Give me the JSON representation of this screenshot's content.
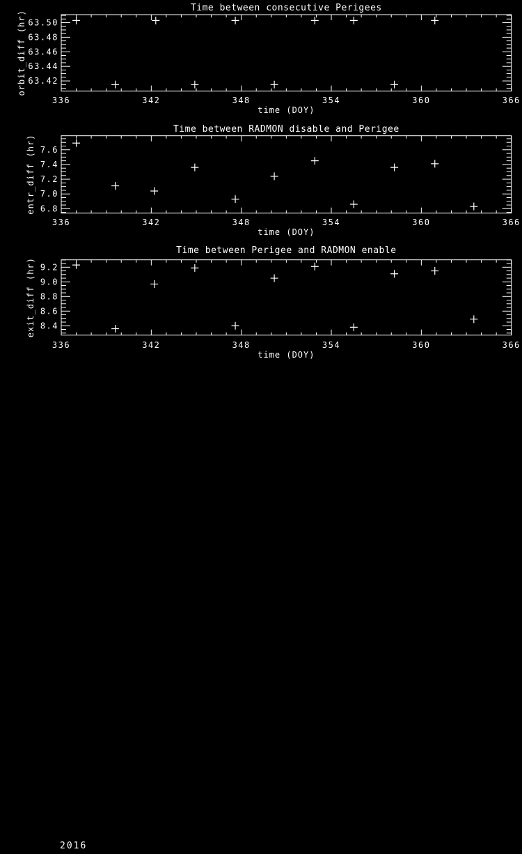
{
  "page": {
    "background": "#000000",
    "foreground": "#ffffff",
    "footer_year": "2016"
  },
  "chart_data": [
    {
      "type": "scatter",
      "title": "Time between consecutive Perigees",
      "xlabel": "time (DOY)",
      "ylabel": "orbit_diff (hr)",
      "marker": "plus",
      "grid": false,
      "legend": "none",
      "xlim": [
        336,
        366
      ],
      "ylim": [
        63.406,
        63.511
      ],
      "xticks": [
        336,
        342,
        348,
        354,
        360,
        366
      ],
      "xtick_labels": [
        "336",
        "342",
        "348",
        "354",
        "360",
        "366"
      ],
      "yticks": [
        63.42,
        63.44,
        63.46,
        63.48,
        63.5
      ],
      "ytick_labels": [
        "63.42",
        "63.44",
        "63.46",
        "63.48",
        "63.50"
      ],
      "x_minor_step": 1,
      "y_minor_step": 0.005,
      "x": [
        337.0,
        339.6,
        342.3,
        344.9,
        347.6,
        350.2,
        352.9,
        355.5,
        358.2,
        360.9
      ],
      "y": [
        63.503,
        63.415,
        63.503,
        63.415,
        63.503,
        63.415,
        63.503,
        63.503,
        63.415,
        63.503
      ]
    },
    {
      "type": "scatter",
      "title": "Time between RADMON disable and Perigee",
      "xlabel": "time (DOY)",
      "ylabel": "entr_diff (hr)",
      "marker": "plus",
      "grid": false,
      "legend": "none",
      "xlim": [
        336,
        366
      ],
      "ylim": [
        6.74,
        7.79
      ],
      "xticks": [
        336,
        342,
        348,
        354,
        360,
        366
      ],
      "xtick_labels": [
        "336",
        "342",
        "348",
        "354",
        "360",
        "366"
      ],
      "yticks": [
        6.8,
        7.0,
        7.2,
        7.4,
        7.6
      ],
      "ytick_labels": [
        "6.8",
        "7.0",
        "7.2",
        "7.4",
        "7.6"
      ],
      "x_minor_step": 1,
      "y_minor_step": 0.05,
      "x": [
        337.0,
        339.6,
        342.2,
        344.9,
        347.6,
        350.2,
        352.9,
        355.5,
        358.2,
        360.9,
        363.5
      ],
      "y": [
        7.69,
        7.11,
        7.04,
        7.36,
        6.93,
        7.24,
        7.45,
        6.86,
        7.36,
        7.41,
        6.83
      ]
    },
    {
      "type": "scatter",
      "title": "Time between Perigee and RADMON enable",
      "xlabel": "time (DOY)",
      "ylabel": "exit_diff (hr)",
      "marker": "plus",
      "grid": false,
      "legend": "none",
      "xlim": [
        336,
        366
      ],
      "ylim": [
        8.272,
        9.301
      ],
      "xticks": [
        336,
        342,
        348,
        354,
        360,
        366
      ],
      "xtick_labels": [
        "336",
        "342",
        "348",
        "354",
        "360",
        "366"
      ],
      "yticks": [
        8.4,
        8.6,
        8.8,
        9.0,
        9.2
      ],
      "ytick_labels": [
        "8.4",
        "8.6",
        "8.8",
        "9.0",
        "9.2"
      ],
      "x_minor_step": 1,
      "y_minor_step": 0.05,
      "x": [
        337.0,
        339.6,
        342.2,
        344.9,
        347.6,
        350.2,
        352.9,
        355.5,
        358.2,
        360.9,
        363.5
      ],
      "y": [
        9.23,
        8.36,
        8.97,
        9.19,
        8.4,
        9.05,
        9.21,
        8.38,
        9.11,
        9.15,
        8.49
      ]
    }
  ]
}
